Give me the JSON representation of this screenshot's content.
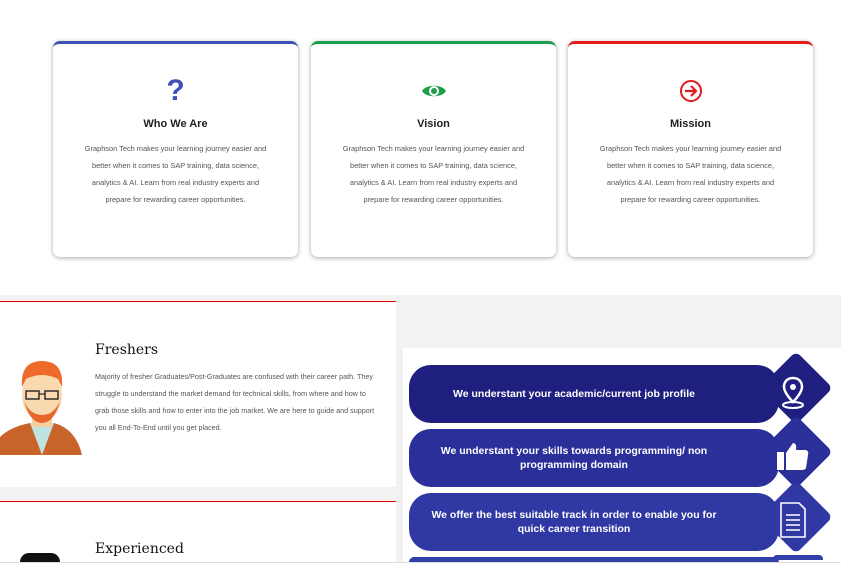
{
  "cards": [
    {
      "title": "Who We Are",
      "icon": "question-icon",
      "color": "#3f51b5",
      "text": "Graphson Tech makes your learning journey easier and better when it comes to SAP training, data science, analytics & AI. Learn from real industry experts and prepare for rewarding career opportunities."
    },
    {
      "title": "Vision",
      "icon": "eye-icon",
      "color": "#1e9e4a",
      "text": "Graphson Tech makes your learning journey easier and better when it comes to SAP training, data science, analytics & AI. Learn from real industry experts and prepare for rewarding career opportunities."
    },
    {
      "title": "Mission",
      "icon": "arrow-circle-right-icon",
      "color": "#e21b1b",
      "text": "Graphson Tech makes your learning journey easier and better when it comes to SAP training, data science, analytics & AI. Learn from real industry experts and prepare for rewarding career opportunities."
    }
  ],
  "profiles": [
    {
      "title": "Freshers",
      "text": "Majority of fresher Graduates/Post-Graduates are confused with their career path. They struggle to understand the market demand for technical skills, from where and how to grab those skills and how to enter into the job market. We are here to guide and support you all End-To-End until you get placed."
    },
    {
      "title": "Experienced"
    }
  ],
  "steps": [
    {
      "text": "We understant your academic/current job profile",
      "icon": "location-pin-icon"
    },
    {
      "text": "We understant your skills towards programming/ non programming domain",
      "icon": "thumbs-up-icon"
    },
    {
      "text": "We offer the best suitable track in order to enable you for quick career transition",
      "icon": "document-icon"
    }
  ],
  "colors": {
    "step1": "#1f1f80",
    "step2": "#2a2f9a",
    "step3": "#3038a3",
    "accent_red": "#e00000"
  }
}
